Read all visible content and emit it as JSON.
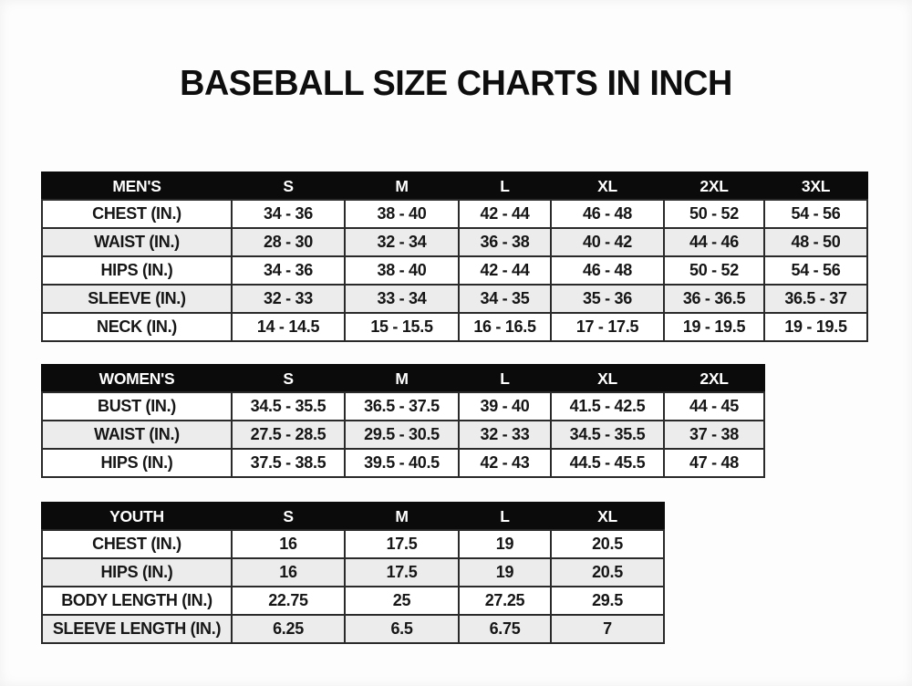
{
  "page": {
    "title": "BASEBALL SIZE CHARTS IN INCH"
  },
  "colors": {
    "header_bg": "#0b0b0b",
    "header_text": "#ffffff",
    "row_bg": "#ffffff",
    "row_alt_bg": "#ececec",
    "border": "#2a2a2a",
    "text": "#161616",
    "page_bg": "#fdfdfd"
  },
  "tables": [
    {
      "id": "mens",
      "columns": [
        "MEN'S",
        "S",
        "M",
        "L",
        "XL",
        "2XL",
        "3XL"
      ],
      "rows": [
        {
          "label": "CHEST (IN.)",
          "values": [
            "34 - 36",
            "38 - 40",
            "42 - 44",
            "46 - 48",
            "50 - 52",
            "54 - 56"
          ]
        },
        {
          "label": "WAIST (IN.)",
          "values": [
            "28 - 30",
            "32 - 34",
            "36 - 38",
            "40 - 42",
            "44 - 46",
            "48 - 50"
          ]
        },
        {
          "label": "HIPS (IN.)",
          "values": [
            "34 - 36",
            "38 - 40",
            "42 - 44",
            "46 - 48",
            "50 - 52",
            "54 - 56"
          ]
        },
        {
          "label": "SLEEVE (IN.)",
          "values": [
            "32 - 33",
            "33 - 34",
            "34 - 35",
            "35 - 36",
            "36 - 36.5",
            "36.5 - 37"
          ]
        },
        {
          "label": "NECK (IN.)",
          "values": [
            "14 - 14.5",
            "15 - 15.5",
            "16 - 16.5",
            "17 - 17.5",
            "19 - 19.5",
            "19 - 19.5"
          ]
        }
      ]
    },
    {
      "id": "womens",
      "columns": [
        "WOMEN'S",
        "S",
        "M",
        "L",
        "XL",
        "2XL"
      ],
      "rows": [
        {
          "label": "BUST (IN.)",
          "values": [
            "34.5 - 35.5",
            "36.5 - 37.5",
            "39 - 40",
            "41.5 - 42.5",
            "44 - 45"
          ]
        },
        {
          "label": "WAIST (IN.)",
          "values": [
            "27.5 - 28.5",
            "29.5 - 30.5",
            "32 - 33",
            "34.5 - 35.5",
            "37 - 38"
          ]
        },
        {
          "label": "HIPS (IN.)",
          "values": [
            "37.5 - 38.5",
            "39.5 - 40.5",
            "42 - 43",
            "44.5 - 45.5",
            "47 - 48"
          ]
        }
      ]
    },
    {
      "id": "youth",
      "columns": [
        "YOUTH",
        "S",
        "M",
        "L",
        "XL"
      ],
      "rows": [
        {
          "label": "CHEST (IN.)",
          "values": [
            "16",
            "17.5",
            "19",
            "20.5"
          ]
        },
        {
          "label": "HIPS (IN.)",
          "values": [
            "16",
            "17.5",
            "19",
            "20.5"
          ]
        },
        {
          "label": "BODY LENGTH (IN.)",
          "values": [
            "22.75",
            "25",
            "27.25",
            "29.5"
          ]
        },
        {
          "label": "SLEEVE LENGTH (IN.)",
          "values": [
            "6.25",
            "6.5",
            "6.75",
            "7"
          ]
        }
      ]
    }
  ]
}
